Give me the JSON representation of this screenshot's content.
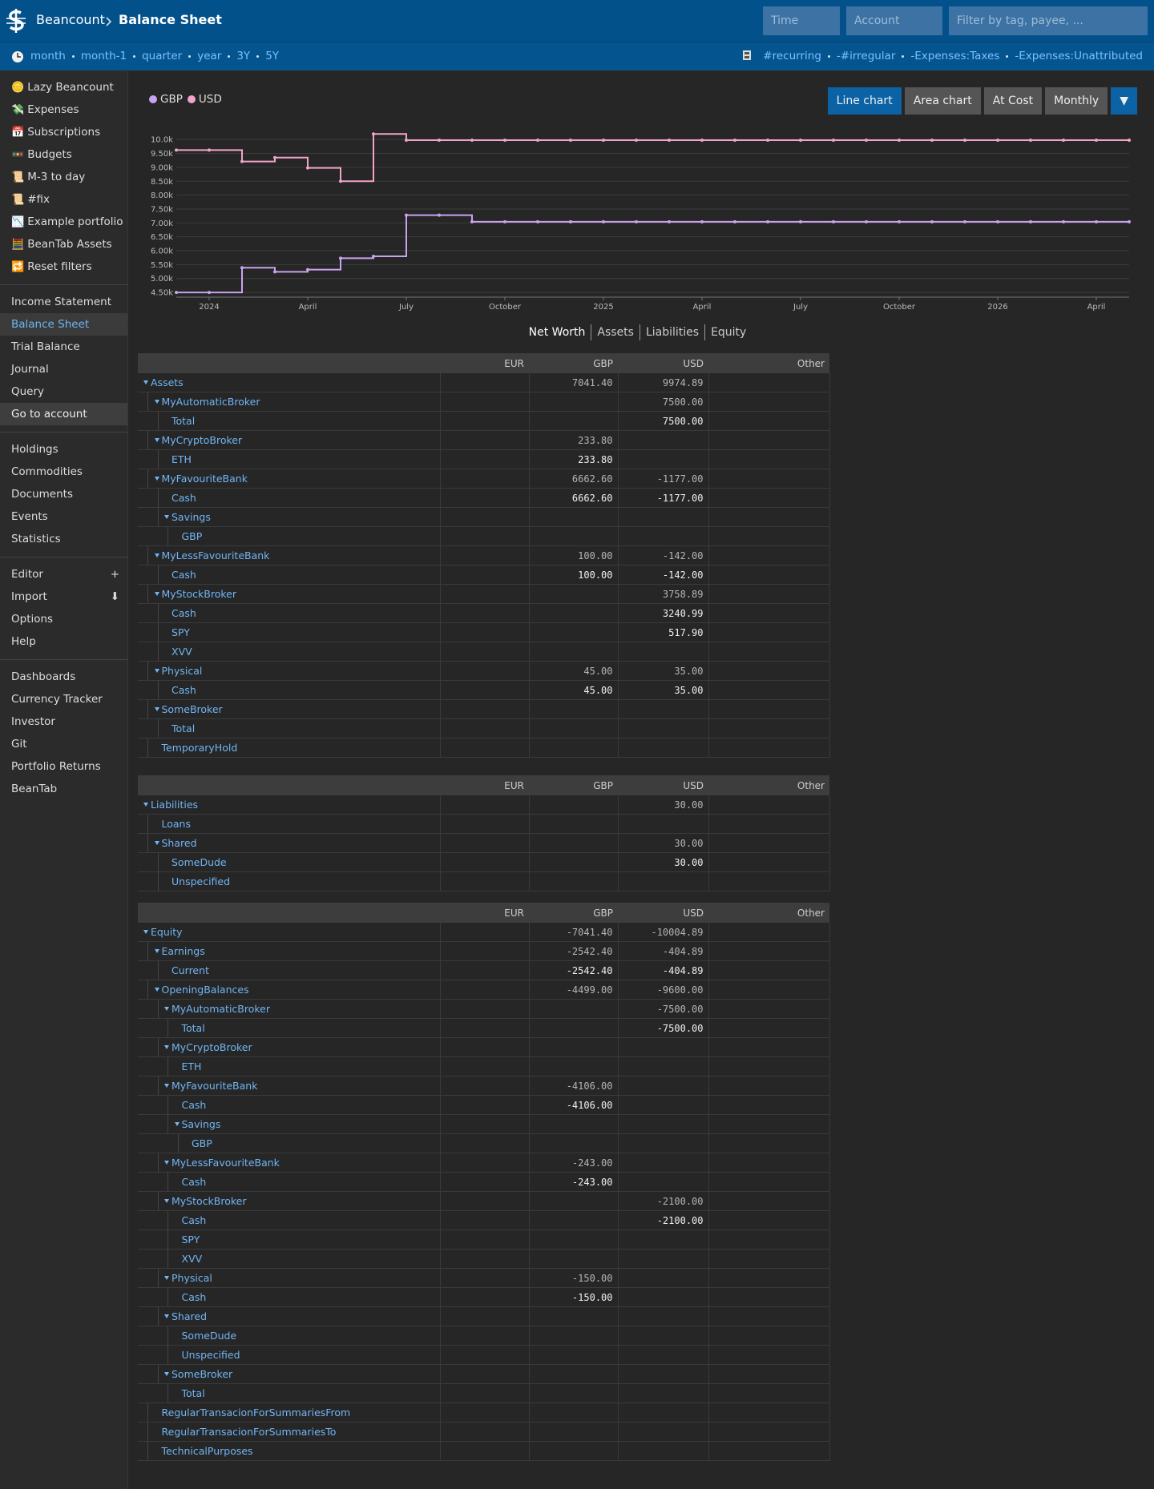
{
  "header": {
    "brand": "Beancount",
    "page": "Balance Sheet",
    "time_placeholder": "Time",
    "account_placeholder": "Account",
    "filter_placeholder": "Filter by tag, payee, ..."
  },
  "time_filters": [
    "month",
    "month-1",
    "quarter",
    "year",
    "3Y",
    "5Y"
  ],
  "filters": [
    "#recurring",
    "-#irregular",
    "-Expenses:Taxes",
    "-Expenses:Unattributed"
  ],
  "sidebar": [
    [
      {
        "icon": "🪙",
        "label": "Lazy Beancount"
      },
      {
        "icon": "💸",
        "label": "Expenses"
      },
      {
        "icon": "📅",
        "label": "Subscriptions"
      },
      {
        "icon": "🚥",
        "label": "Budgets"
      },
      {
        "icon": "📜",
        "label": "M-3 to day"
      },
      {
        "icon": "📜",
        "label": "#fix"
      },
      {
        "icon": "📉",
        "label": "Example portfolio"
      },
      {
        "icon": "🧮",
        "label": "BeanTab Assets"
      },
      {
        "icon": "🔁",
        "label": "Reset filters"
      }
    ],
    [
      {
        "label": "Income Statement"
      },
      {
        "label": "Balance Sheet",
        "selected": true
      },
      {
        "label": "Trial Balance"
      },
      {
        "label": "Journal"
      },
      {
        "label": "Query"
      },
      {
        "label": "Go to account",
        "highlight": true
      }
    ],
    [
      {
        "label": "Holdings"
      },
      {
        "label": "Commodities"
      },
      {
        "label": "Documents"
      },
      {
        "label": "Events"
      },
      {
        "label": "Statistics"
      }
    ],
    [
      {
        "label": "Editor",
        "extra": "+"
      },
      {
        "label": "Import",
        "extra": "⬇"
      },
      {
        "label": "Options"
      },
      {
        "label": "Help"
      }
    ],
    [
      {
        "label": "Dashboards"
      },
      {
        "label": "Currency Tracker"
      },
      {
        "label": "Investor"
      },
      {
        "label": "Git"
      },
      {
        "label": "Portfolio Returns"
      },
      {
        "label": "BeanTab"
      }
    ]
  ],
  "chart_controls": {
    "buttons": [
      {
        "label": "Line chart",
        "selected": true
      },
      {
        "label": "Area chart"
      },
      {
        "label": "At Cost"
      },
      {
        "label": "Monthly"
      }
    ],
    "menu": "▼"
  },
  "chart_data": {
    "type": "line",
    "curve": "step-after",
    "grid": true,
    "x": [
      "2023-12",
      "2024-01",
      "2024-02",
      "2024-03",
      "2024-04",
      "2024-05",
      "2024-06",
      "2024-07",
      "2024-08",
      "2024-09",
      "2024-10",
      "2024-11",
      "2024-12",
      "2025-01",
      "2025-02",
      "2025-03",
      "2025-04",
      "2025-05",
      "2025-06",
      "2025-07",
      "2025-08",
      "2025-09",
      "2025-10",
      "2025-11",
      "2025-12",
      "2026-01",
      "2026-02",
      "2026-03",
      "2026-04",
      "2026-05"
    ],
    "series": [
      {
        "name": "GBP",
        "color": "#c9a3ef",
        "values": [
          4500,
          4500,
          5390,
          5240,
          5320,
          5730,
          5800,
          7280,
          7280,
          7041.4,
          7041.4,
          7041.4,
          7041.4,
          7041.4,
          7041.4,
          7041.4,
          7041.4,
          7041.4,
          7041.4,
          7041.4,
          7041.4,
          7041.4,
          7041.4,
          7041.4,
          7041.4,
          7041.4,
          7041.4,
          7041.4,
          7041.4,
          7041.4
        ]
      },
      {
        "name": "USD",
        "color": "#f2a3c9",
        "values": [
          9620,
          9620,
          9210,
          9350,
          8980,
          8500,
          10200,
          9974.89,
          9974.89,
          9974.89,
          9974.89,
          9974.89,
          9974.89,
          9974.89,
          9974.89,
          9974.89,
          9974.89,
          9974.89,
          9974.89,
          9974.89,
          9974.89,
          9974.89,
          9974.89,
          9974.89,
          9974.89,
          9974.89,
          9974.89,
          9974.89,
          9974.89,
          9974.89
        ]
      }
    ],
    "xlim": [
      "2023-12",
      "2026-05"
    ],
    "xticks": [
      {
        "value": "2024-01",
        "label": "2024"
      },
      {
        "value": "2024-04",
        "label": "April"
      },
      {
        "value": "2024-07",
        "label": "July"
      },
      {
        "value": "2024-10",
        "label": "October"
      },
      {
        "value": "2025-01",
        "label": "2025"
      },
      {
        "value": "2025-04",
        "label": "April"
      },
      {
        "value": "2025-07",
        "label": "July"
      },
      {
        "value": "2025-10",
        "label": "October"
      },
      {
        "value": "2026-01",
        "label": "2026"
      },
      {
        "value": "2026-04",
        "label": "April"
      }
    ],
    "ylim": [
      4330,
      10380
    ],
    "yticks": [
      {
        "value": 4500,
        "label": "4.50k"
      },
      {
        "value": 5000,
        "label": "5.00k"
      },
      {
        "value": 5500,
        "label": "5.50k"
      },
      {
        "value": 6000,
        "label": "6.00k"
      },
      {
        "value": 6500,
        "label": "6.50k"
      },
      {
        "value": 7000,
        "label": "7.00k"
      },
      {
        "value": 7500,
        "label": "7.50k"
      },
      {
        "value": 8000,
        "label": "8.00k"
      },
      {
        "value": 8500,
        "label": "8.50k"
      },
      {
        "value": 9000,
        "label": "9.00k"
      },
      {
        "value": 9500,
        "label": "9.50k"
      },
      {
        "value": 10000,
        "label": "10.0k"
      }
    ]
  },
  "tabs": [
    {
      "label": "Net Worth",
      "selected": true
    },
    {
      "label": "Assets"
    },
    {
      "label": "Liabilities"
    },
    {
      "label": "Equity"
    }
  ],
  "tables": [
    {
      "columns": [
        "EUR",
        "GBP",
        "USD",
        "Other"
      ],
      "rows": [
        {
          "name": "Assets",
          "cells": [
            null,
            "7041.40",
            "9974.89",
            null
          ],
          "children": [
            {
              "name": "MyAutomaticBroker",
              "cells": [
                null,
                null,
                "7500.00",
                null
              ],
              "children": [
                {
                  "name": "Total",
                  "cells": [
                    null,
                    null,
                    "7500.00",
                    null
                  ]
                }
              ]
            },
            {
              "name": "MyCryptoBroker",
              "cells": [
                null,
                "233.80",
                null,
                null
              ],
              "children": [
                {
                  "name": "ETH",
                  "cells": [
                    null,
                    "233.80",
                    null,
                    null
                  ]
                }
              ]
            },
            {
              "name": "MyFavouriteBank",
              "cells": [
                null,
                "6662.60",
                "-1177.00",
                null
              ],
              "children": [
                {
                  "name": "Cash",
                  "cells": [
                    null,
                    "6662.60",
                    "-1177.00",
                    null
                  ]
                },
                {
                  "name": "Savings",
                  "cells": [
                    null,
                    null,
                    null,
                    null
                  ],
                  "children": [
                    {
                      "name": "GBP",
                      "cells": [
                        null,
                        null,
                        null,
                        null
                      ]
                    }
                  ]
                }
              ]
            },
            {
              "name": "MyLessFavouriteBank",
              "cells": [
                null,
                "100.00",
                "-142.00",
                null
              ],
              "children": [
                {
                  "name": "Cash",
                  "cells": [
                    null,
                    "100.00",
                    "-142.00",
                    null
                  ]
                }
              ]
            },
            {
              "name": "MyStockBroker",
              "cells": [
                null,
                null,
                "3758.89",
                null
              ],
              "children": [
                {
                  "name": "Cash",
                  "cells": [
                    null,
                    null,
                    "3240.99",
                    null
                  ]
                },
                {
                  "name": "SPY",
                  "cells": [
                    null,
                    null,
                    "517.90",
                    null
                  ]
                },
                {
                  "name": "XVV",
                  "cells": [
                    null,
                    null,
                    null,
                    null
                  ]
                }
              ]
            },
            {
              "name": "Physical",
              "cells": [
                null,
                "45.00",
                "35.00",
                null
              ],
              "children": [
                {
                  "name": "Cash",
                  "cells": [
                    null,
                    "45.00",
                    "35.00",
                    null
                  ]
                }
              ]
            },
            {
              "name": "SomeBroker",
              "cells": [
                null,
                null,
                null,
                null
              ],
              "children": [
                {
                  "name": "Total",
                  "cells": [
                    null,
                    null,
                    null,
                    null
                  ]
                }
              ]
            },
            {
              "name": "TemporaryHold",
              "cells": [
                null,
                null,
                null,
                null
              ]
            }
          ]
        }
      ]
    },
    {
      "columns": [
        "EUR",
        "GBP",
        "USD",
        "Other"
      ],
      "rows": [
        {
          "name": "Liabilities",
          "cells": [
            null,
            null,
            "30.00",
            null
          ],
          "children": [
            {
              "name": "Loans",
              "cells": [
                null,
                null,
                null,
                null
              ]
            },
            {
              "name": "Shared",
              "cells": [
                null,
                null,
                "30.00",
                null
              ],
              "children": [
                {
                  "name": "SomeDude",
                  "cells": [
                    null,
                    null,
                    "30.00",
                    null
                  ]
                },
                {
                  "name": "Unspecified",
                  "cells": [
                    null,
                    null,
                    null,
                    null
                  ]
                }
              ]
            }
          ]
        }
      ]
    },
    {
      "columns": [
        "EUR",
        "GBP",
        "USD",
        "Other"
      ],
      "rows": [
        {
          "name": "Equity",
          "cells": [
            null,
            "-7041.40",
            "-10004.89",
            null
          ],
          "children": [
            {
              "name": "Earnings",
              "cells": [
                null,
                "-2542.40",
                "-404.89",
                null
              ],
              "children": [
                {
                  "name": "Current",
                  "cells": [
                    null,
                    "-2542.40",
                    "-404.89",
                    null
                  ]
                }
              ]
            },
            {
              "name": "OpeningBalances",
              "cells": [
                null,
                "-4499.00",
                "-9600.00",
                null
              ],
              "children": [
                {
                  "name": "MyAutomaticBroker",
                  "cells": [
                    null,
                    null,
                    "-7500.00",
                    null
                  ],
                  "children": [
                    {
                      "name": "Total",
                      "cells": [
                        null,
                        null,
                        "-7500.00",
                        null
                      ]
                    }
                  ]
                },
                {
                  "name": "MyCryptoBroker",
                  "cells": [
                    null,
                    null,
                    null,
                    null
                  ],
                  "children": [
                    {
                      "name": "ETH",
                      "cells": [
                        null,
                        null,
                        null,
                        null
                      ]
                    }
                  ]
                },
                {
                  "name": "MyFavouriteBank",
                  "cells": [
                    null,
                    "-4106.00",
                    null,
                    null
                  ],
                  "children": [
                    {
                      "name": "Cash",
                      "cells": [
                        null,
                        "-4106.00",
                        null,
                        null
                      ]
                    },
                    {
                      "name": "Savings",
                      "cells": [
                        null,
                        null,
                        null,
                        null
                      ],
                      "children": [
                        {
                          "name": "GBP",
                          "cells": [
                            null,
                            null,
                            null,
                            null
                          ]
                        }
                      ]
                    }
                  ]
                },
                {
                  "name": "MyLessFavouriteBank",
                  "cells": [
                    null,
                    "-243.00",
                    null,
                    null
                  ],
                  "children": [
                    {
                      "name": "Cash",
                      "cells": [
                        null,
                        "-243.00",
                        null,
                        null
                      ]
                    }
                  ]
                },
                {
                  "name": "MyStockBroker",
                  "cells": [
                    null,
                    null,
                    "-2100.00",
                    null
                  ],
                  "children": [
                    {
                      "name": "Cash",
                      "cells": [
                        null,
                        null,
                        "-2100.00",
                        null
                      ]
                    },
                    {
                      "name": "SPY",
                      "cells": [
                        null,
                        null,
                        null,
                        null
                      ]
                    },
                    {
                      "name": "XVV",
                      "cells": [
                        null,
                        null,
                        null,
                        null
                      ]
                    }
                  ]
                },
                {
                  "name": "Physical",
                  "cells": [
                    null,
                    "-150.00",
                    null,
                    null
                  ],
                  "children": [
                    {
                      "name": "Cash",
                      "cells": [
                        null,
                        "-150.00",
                        null,
                        null
                      ]
                    }
                  ]
                },
                {
                  "name": "Shared",
                  "cells": [
                    null,
                    null,
                    null,
                    null
                  ],
                  "children": [
                    {
                      "name": "SomeDude",
                      "cells": [
                        null,
                        null,
                        null,
                        null
                      ]
                    },
                    {
                      "name": "Unspecified",
                      "cells": [
                        null,
                        null,
                        null,
                        null
                      ]
                    }
                  ]
                },
                {
                  "name": "SomeBroker",
                  "cells": [
                    null,
                    null,
                    null,
                    null
                  ],
                  "children": [
                    {
                      "name": "Total",
                      "cells": [
                        null,
                        null,
                        null,
                        null
                      ]
                    }
                  ]
                }
              ]
            },
            {
              "name": "RegularTransacionForSummariesFrom",
              "cells": [
                null,
                null,
                null,
                null
              ]
            },
            {
              "name": "RegularTransacionForSummariesTo",
              "cells": [
                null,
                null,
                null,
                null
              ]
            },
            {
              "name": "TechnicalPurposes",
              "cells": [
                null,
                null,
                null,
                null
              ]
            }
          ]
        }
      ]
    }
  ]
}
